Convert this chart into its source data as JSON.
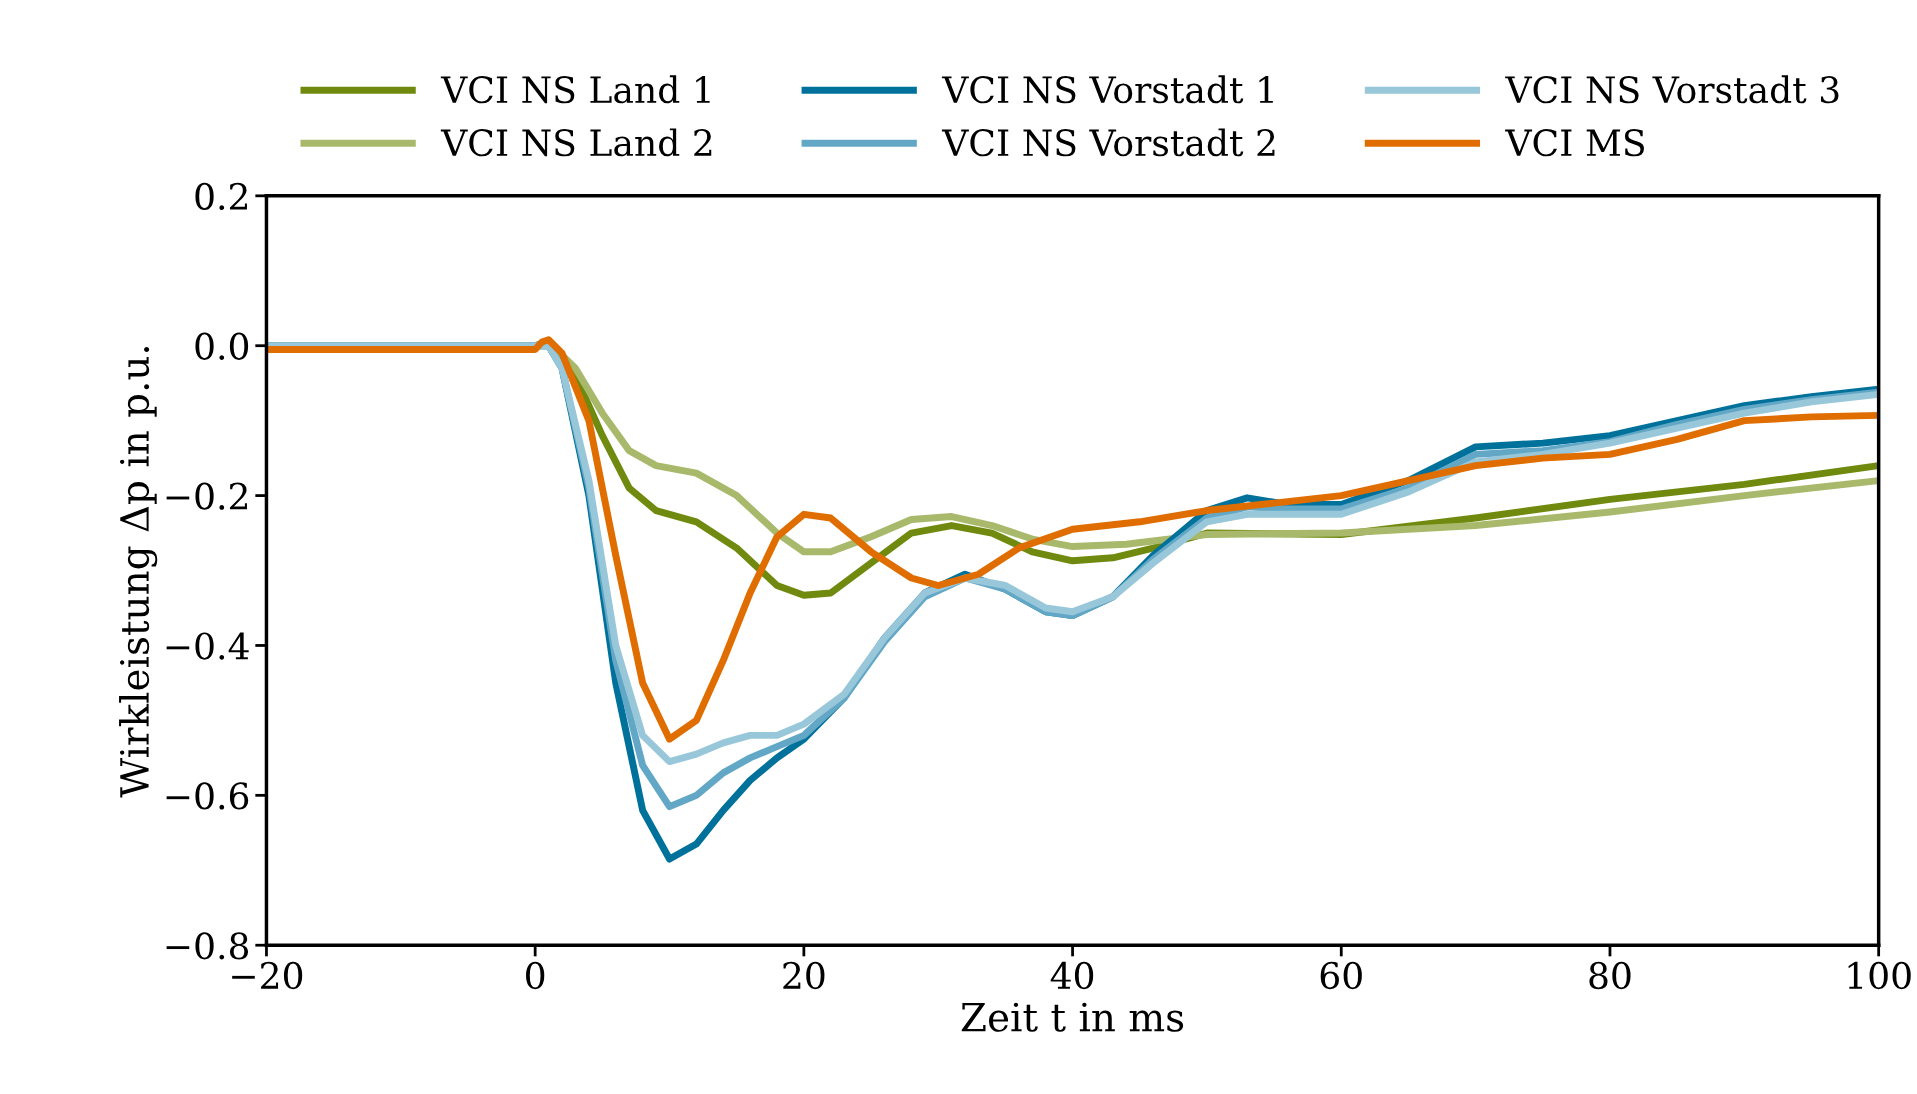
{
  "chart_data": {
    "type": "line",
    "xlabel": "Zeit t in ms",
    "ylabel": "Wirkleistung Δp in p.u.",
    "xlim": [
      -20,
      100
    ],
    "ylim": [
      -0.8,
      0.2
    ],
    "xticks": [
      {
        "value": -20,
        "label": "−20"
      },
      0,
      20,
      40,
      60,
      80,
      100
    ],
    "yticks": [
      {
        "value": -0.8,
        "label": "−0.8"
      },
      {
        "value": -0.6,
        "label": "−0.6"
      },
      {
        "value": -0.4,
        "label": "−0.4"
      },
      {
        "value": -0.2,
        "label": "−0.2"
      },
      {
        "value": 0,
        "label": "0.0"
      },
      {
        "value": 0.2,
        "label": "0.2"
      }
    ],
    "grid": false,
    "legend": "top",
    "line_style": "solid",
    "marker": "none",
    "series": [
      {
        "name": "VCI NS Land 1",
        "color": "#6f8a0f",
        "x": [
          -20,
          0,
          1,
          3,
          5,
          7,
          9,
          12,
          15,
          18,
          20,
          22,
          25,
          28,
          31,
          34,
          37,
          40,
          43,
          46,
          50,
          60,
          70,
          80,
          90,
          100
        ],
        "values": [
          0,
          0,
          0.005,
          -0.04,
          -0.12,
          -0.19,
          -0.22,
          -0.235,
          -0.27,
          -0.32,
          -0.333,
          -0.33,
          -0.29,
          -0.25,
          -0.24,
          -0.25,
          -0.275,
          -0.287,
          -0.283,
          -0.27,
          -0.25,
          -0.252,
          -0.23,
          -0.205,
          -0.185,
          -0.16
        ]
      },
      {
        "name": "VCI NS Land 2",
        "color": "#a8b96b",
        "x": [
          -20,
          0,
          1,
          3,
          5,
          7,
          9,
          12,
          15,
          18,
          20,
          22,
          25,
          28,
          31,
          34,
          37,
          40,
          44,
          50,
          60,
          70,
          80,
          90,
          100
        ],
        "values": [
          0,
          0,
          0.005,
          -0.03,
          -0.09,
          -0.14,
          -0.16,
          -0.17,
          -0.2,
          -0.25,
          -0.275,
          -0.275,
          -0.255,
          -0.232,
          -0.228,
          -0.24,
          -0.258,
          -0.268,
          -0.265,
          -0.252,
          -0.25,
          -0.24,
          -0.222,
          -0.2,
          -0.18
        ]
      },
      {
        "name": "VCI NS Vorstadt 1",
        "color": "#00719b",
        "x": [
          -20,
          0,
          1,
          2,
          4,
          6,
          8,
          10,
          12,
          14,
          16,
          18,
          20,
          23,
          26,
          29,
          32,
          35,
          38,
          40,
          43,
          46,
          50,
          53,
          56,
          60,
          65,
          70,
          75,
          80,
          85,
          90,
          95,
          100
        ],
        "values": [
          0,
          0,
          0,
          -0.03,
          -0.2,
          -0.45,
          -0.62,
          -0.685,
          -0.665,
          -0.62,
          -0.58,
          -0.55,
          -0.525,
          -0.47,
          -0.39,
          -0.33,
          -0.305,
          -0.325,
          -0.355,
          -0.36,
          -0.335,
          -0.28,
          -0.22,
          -0.203,
          -0.212,
          -0.212,
          -0.18,
          -0.135,
          -0.13,
          -0.12,
          -0.1,
          -0.08,
          -0.068,
          -0.058
        ]
      },
      {
        "name": "VCI NS Vorstadt 2",
        "color": "#62a8c6",
        "x": [
          -20,
          0,
          1,
          2,
          4,
          6,
          8,
          10,
          12,
          14,
          16,
          18,
          20,
          23,
          26,
          29,
          32,
          35,
          38,
          40,
          43,
          46,
          50,
          53,
          56,
          60,
          65,
          70,
          75,
          80,
          85,
          90,
          95,
          100
        ],
        "values": [
          0,
          0,
          0,
          -0.03,
          -0.19,
          -0.42,
          -0.56,
          -0.615,
          -0.6,
          -0.57,
          -0.55,
          -0.535,
          -0.52,
          -0.47,
          -0.395,
          -0.335,
          -0.31,
          -0.325,
          -0.355,
          -0.36,
          -0.335,
          -0.285,
          -0.23,
          -0.215,
          -0.218,
          -0.218,
          -0.19,
          -0.145,
          -0.14,
          -0.128,
          -0.105,
          -0.085,
          -0.072,
          -0.062
        ]
      },
      {
        "name": "VCI NS Vorstadt 3",
        "color": "#98c7da",
        "x": [
          -20,
          0,
          1,
          2,
          4,
          6,
          8,
          10,
          12,
          14,
          16,
          18,
          20,
          23,
          26,
          29,
          32,
          35,
          38,
          40,
          43,
          46,
          50,
          53,
          56,
          60,
          65,
          70,
          75,
          80,
          85,
          90,
          95,
          100
        ],
        "values": [
          0,
          0,
          0,
          -0.03,
          -0.18,
          -0.4,
          -0.52,
          -0.555,
          -0.545,
          -0.53,
          -0.52,
          -0.52,
          -0.505,
          -0.465,
          -0.39,
          -0.33,
          -0.31,
          -0.32,
          -0.35,
          -0.355,
          -0.335,
          -0.29,
          -0.235,
          -0.225,
          -0.225,
          -0.225,
          -0.195,
          -0.155,
          -0.145,
          -0.13,
          -0.11,
          -0.09,
          -0.075,
          -0.065
        ]
      },
      {
        "name": "VCI MS",
        "color": "#e06d00",
        "x": [
          -20,
          0,
          0.5,
          1,
          2,
          4,
          6,
          8,
          10,
          12,
          14,
          16,
          18,
          20,
          22,
          25,
          28,
          30,
          33,
          36,
          40,
          45,
          50,
          55,
          60,
          65,
          70,
          75,
          80,
          85,
          90,
          95,
          100
        ],
        "values": [
          -0.005,
          -0.005,
          0.005,
          0.008,
          -0.01,
          -0.1,
          -0.28,
          -0.45,
          -0.525,
          -0.5,
          -0.42,
          -0.33,
          -0.255,
          -0.225,
          -0.23,
          -0.275,
          -0.31,
          -0.32,
          -0.305,
          -0.27,
          -0.245,
          -0.235,
          -0.22,
          -0.21,
          -0.2,
          -0.18,
          -0.16,
          -0.15,
          -0.145,
          -0.125,
          -0.1,
          -0.095,
          -0.093
        ]
      }
    ]
  }
}
